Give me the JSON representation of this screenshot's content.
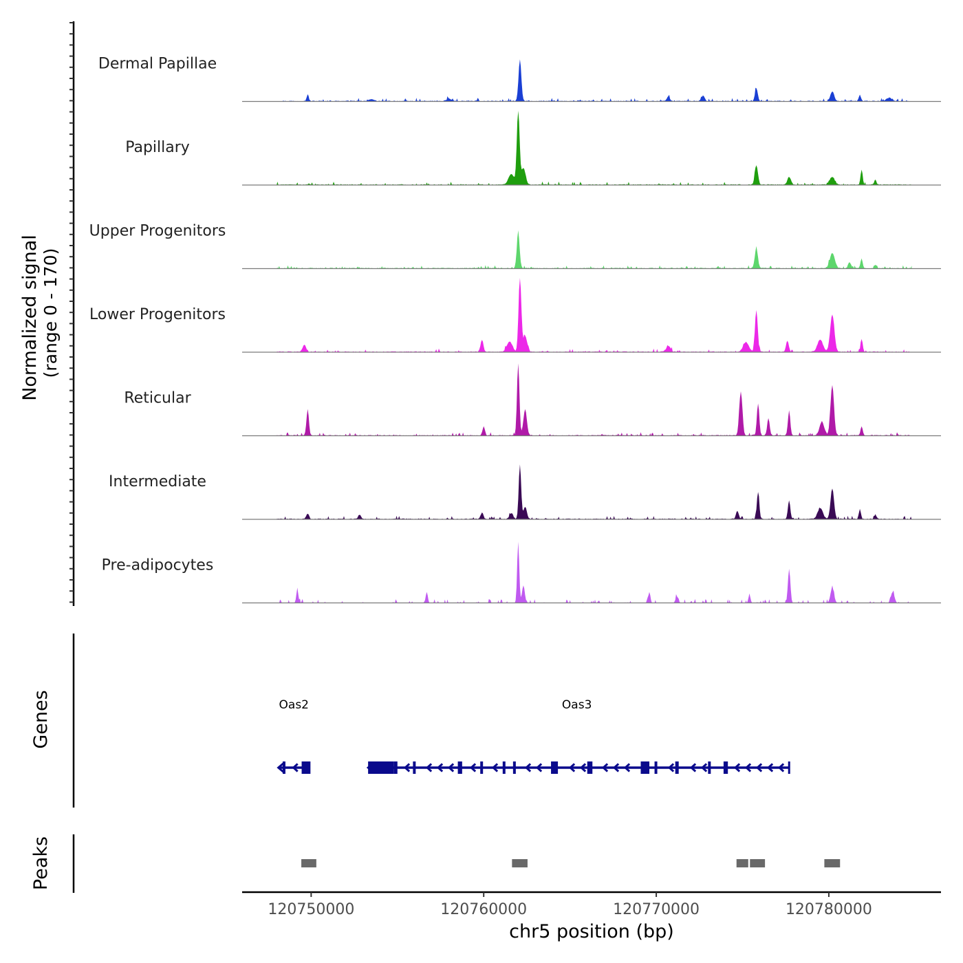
{
  "chart_data": {
    "type": "area",
    "chromosome": "chr5",
    "xlim": [
      120746000,
      120786500
    ],
    "xticks": [
      120750000,
      120760000,
      120770000,
      120780000
    ],
    "xtick_labels": [
      "120750000",
      "120760000",
      "120770000",
      "120780000"
    ],
    "xlabel": "chr5 position (bp)",
    "ylabel_line1": "Normalized signal",
    "ylabel_line2": "(range 0 - 170)",
    "ylim": [
      0,
      170
    ],
    "genes_label": "Genes",
    "peaks_label": "Peaks",
    "tracks": [
      {
        "name": "Dermal Papillae",
        "color": "#1a3fd4",
        "peaks": [
          [
            120749800,
            15,
            60
          ],
          [
            120753500,
            5,
            120
          ],
          [
            120758000,
            5,
            150
          ],
          [
            120762100,
            95,
            80
          ],
          [
            120770700,
            12,
            80
          ],
          [
            120772700,
            12,
            100
          ],
          [
            120775800,
            30,
            80
          ],
          [
            120780200,
            22,
            110
          ],
          [
            120781800,
            14,
            60
          ],
          [
            120783500,
            8,
            150
          ]
        ]
      },
      {
        "name": "Papillary",
        "color": "#1f9e0e",
        "peaks": [
          [
            120762000,
            170,
            80
          ],
          [
            120762300,
            38,
            120
          ],
          [
            120761600,
            25,
            160
          ],
          [
            120775800,
            45,
            90
          ],
          [
            120777700,
            18,
            100
          ],
          [
            120780200,
            18,
            140
          ],
          [
            120781900,
            35,
            60
          ],
          [
            120782700,
            12,
            60
          ]
        ]
      },
      {
        "name": "Upper Progenitors",
        "color": "#5dd66c",
        "peaks": [
          [
            120762000,
            82,
            80
          ],
          [
            120775800,
            45,
            90
          ],
          [
            120780200,
            35,
            140
          ],
          [
            120781900,
            22,
            60
          ],
          [
            120781200,
            14,
            80
          ],
          [
            120782700,
            8,
            60
          ]
        ]
      },
      {
        "name": "Lower Progenitors",
        "color": "#ec28e8",
        "peaks": [
          [
            120749600,
            16,
            100
          ],
          [
            120759900,
            28,
            80
          ],
          [
            120762100,
            170,
            80
          ],
          [
            120762400,
            35,
            120
          ],
          [
            120761500,
            24,
            160
          ],
          [
            120775800,
            95,
            80
          ],
          [
            120775200,
            22,
            160
          ],
          [
            120777600,
            25,
            80
          ],
          [
            120780200,
            85,
            120
          ],
          [
            120779500,
            28,
            160
          ],
          [
            120781900,
            30,
            60
          ],
          [
            120770700,
            14,
            120
          ]
        ]
      },
      {
        "name": "Reticular",
        "color": "#b01aa8",
        "peaks": [
          [
            120749800,
            60,
            70
          ],
          [
            120760000,
            20,
            70
          ],
          [
            120762000,
            165,
            70
          ],
          [
            120762400,
            60,
            100
          ],
          [
            120774900,
            100,
            90
          ],
          [
            120775900,
            72,
            70
          ],
          [
            120776500,
            40,
            70
          ],
          [
            120777700,
            55,
            70
          ],
          [
            120780200,
            115,
            100
          ],
          [
            120779600,
            30,
            140
          ],
          [
            120781900,
            20,
            60
          ]
        ]
      },
      {
        "name": "Intermediate",
        "color": "#3a0a55",
        "peaks": [
          [
            120749800,
            12,
            80
          ],
          [
            120752800,
            10,
            80
          ],
          [
            120759900,
            14,
            80
          ],
          [
            120761600,
            14,
            100
          ],
          [
            120762100,
            125,
            70
          ],
          [
            120762400,
            28,
            100
          ],
          [
            120774700,
            18,
            80
          ],
          [
            120775900,
            62,
            70
          ],
          [
            120777700,
            42,
            70
          ],
          [
            120780200,
            70,
            100
          ],
          [
            120779500,
            25,
            150
          ],
          [
            120781800,
            22,
            60
          ],
          [
            120782700,
            10,
            60
          ]
        ]
      },
      {
        "name": "Pre-adipocytes",
        "color": "#c05af0",
        "peaks": [
          [
            120749200,
            30,
            60
          ],
          [
            120756700,
            25,
            60
          ],
          [
            120762000,
            140,
            60
          ],
          [
            120762300,
            40,
            80
          ],
          [
            120769600,
            25,
            60
          ],
          [
            120771200,
            15,
            80
          ],
          [
            120775400,
            18,
            60
          ],
          [
            120777700,
            78,
            70
          ],
          [
            120780200,
            35,
            100
          ],
          [
            120783700,
            25,
            100
          ]
        ]
      }
    ],
    "genes": [
      {
        "name": "Oas2",
        "label_pos": 120749000,
        "start": 120748100,
        "end": 120749900,
        "strand": "-",
        "exons": [
          [
            120748350,
            120748500
          ],
          [
            120749450,
            120749850
          ]
        ]
      },
      {
        "name": "Oas3",
        "label_pos": 120765400,
        "start": 120753300,
        "end": 120777700,
        "strand": "-",
        "exons": [
          [
            120753300,
            120754800
          ],
          [
            120754800,
            120755000
          ],
          [
            120755900,
            120756050
          ],
          [
            120758500,
            120758750
          ],
          [
            120759800,
            120759900
          ],
          [
            120761100,
            120761200
          ],
          [
            120761700,
            120761850
          ],
          [
            120763900,
            120764300
          ],
          [
            120766000,
            120766300
          ],
          [
            120769100,
            120769600
          ],
          [
            120769900,
            120770050
          ],
          [
            120771100,
            120771300
          ],
          [
            120773000,
            120773100
          ],
          [
            120773900,
            120774150
          ]
        ]
      }
    ],
    "peak_regions": [
      [
        120749430,
        120750300
      ],
      [
        120761640,
        120762540
      ],
      [
        120774650,
        120775330
      ],
      [
        120775430,
        120776300
      ],
      [
        120779740,
        120780650
      ]
    ]
  }
}
